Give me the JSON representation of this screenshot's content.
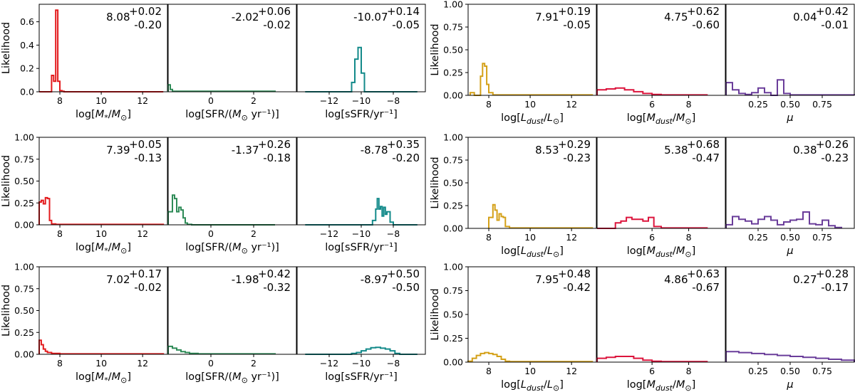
{
  "colors": {
    "mstar": "#e31a1c",
    "sfr": "#2e8b57",
    "ssfr": "#138a8a",
    "ldust": "#d4a017",
    "mdust": "#dc143c",
    "mu": "#6a3d9a"
  },
  "chart_data": [
    {
      "group": "left",
      "row": 0,
      "col": 0,
      "type": "histogram",
      "ylabel": "Likelihood",
      "xlabel": "log[M*/M⊙]",
      "xlim": [
        7,
        13.2
      ],
      "ylim": [
        0,
        0.75
      ],
      "xticks": [
        "8",
        "10",
        "12"
      ],
      "xtick_values": [
        8,
        10,
        12
      ],
      "yticks": [
        "0.0",
        "0.2",
        "0.4",
        "0.6"
      ],
      "ytick_values": [
        0,
        0.2,
        0.4,
        0.6
      ],
      "color_key": "mstar",
      "annotation": {
        "value": "8.08",
        "plus": "+0.02",
        "minus": "-0.20"
      },
      "edges": [
        7.0,
        7.6,
        7.7,
        7.8,
        7.9,
        8.0,
        8.1,
        8.2,
        13.0
      ],
      "values": [
        0,
        0.14,
        0.09,
        0.7,
        0.09,
        0.01,
        0.005,
        0
      ]
    },
    {
      "group": "left",
      "row": 0,
      "col": 1,
      "type": "histogram",
      "xlabel": "log[SFR/(M⊙ yr⁻¹)]",
      "xlim": [
        -2,
        4
      ],
      "ylim": [
        0,
        0.75
      ],
      "xticks": [
        "0",
        "2"
      ],
      "xtick_values": [
        0,
        2
      ],
      "yticks": [],
      "ytick_values": [],
      "color_key": "sfr",
      "annotation": {
        "value": "-2.02",
        "plus": "+0.06",
        "minus": "-0.02"
      },
      "edges": [
        -2.0,
        -1.9,
        -1.8,
        3.0
      ],
      "values": [
        0.06,
        0.02,
        0.005
      ]
    },
    {
      "group": "left",
      "row": 0,
      "col": 2,
      "type": "histogram",
      "xlabel": "log[sSFR/yr⁻¹]",
      "xlim": [
        -14,
        -6
      ],
      "ylim": [
        0,
        0.75
      ],
      "xticks": [
        "−12",
        "−10",
        "−8"
      ],
      "xtick_values": [
        -12,
        -10,
        -8
      ],
      "yticks": [],
      "ytick_values": [],
      "color_key": "ssfr",
      "annotation": {
        "value": "-10.07",
        "plus": "+0.14",
        "minus": "-0.05"
      },
      "edges": [
        -13.5,
        -10.6,
        -10.4,
        -10.2,
        -10.0,
        -9.8,
        -6.5
      ],
      "values": [
        0,
        0.08,
        0.28,
        0.38,
        0.16,
        0
      ]
    },
    {
      "group": "left",
      "row": 1,
      "col": 0,
      "type": "histogram",
      "ylabel": "Likelihood",
      "xlabel": "log[M*/M⊙]",
      "xlim": [
        7,
        13.2
      ],
      "ylim": [
        0,
        1.0
      ],
      "xticks": [
        "8",
        "10",
        "12"
      ],
      "xtick_values": [
        8,
        10,
        12
      ],
      "yticks": [
        "0.00",
        "0.25",
        "0.50",
        "0.75",
        "1.00"
      ],
      "ytick_values": [
        0,
        0.25,
        0.5,
        0.75,
        1.0
      ],
      "color_key": "mstar",
      "annotation": {
        "value": "7.39",
        "plus": "+0.05",
        "minus": "-0.13"
      },
      "edges": [
        7.0,
        7.1,
        7.2,
        7.3,
        7.4,
        7.5,
        7.6,
        7.8,
        13.0
      ],
      "values": [
        0.26,
        0.28,
        0.24,
        0.31,
        0.3,
        0.05,
        0.01,
        0.005
      ]
    },
    {
      "group": "left",
      "row": 1,
      "col": 1,
      "type": "histogram",
      "xlabel": "log[SFR/(M⊙ yr⁻¹)]",
      "xlim": [
        -2,
        4
      ],
      "ylim": [
        0,
        1.0
      ],
      "xticks": [
        "0",
        "2"
      ],
      "xtick_values": [
        0,
        2
      ],
      "yticks": [],
      "ytick_values": [],
      "color_key": "sfr",
      "annotation": {
        "value": "-1.37",
        "plus": "+0.26",
        "minus": "-0.18"
      },
      "edges": [
        -2.0,
        -1.8,
        -1.7,
        -1.6,
        -1.5,
        -1.4,
        -1.3,
        -1.2,
        -1.1,
        -0.9,
        3.0
      ],
      "values": [
        0.15,
        0.34,
        0.3,
        0.15,
        0.2,
        0.17,
        0.08,
        0.02,
        0.005,
        0
      ]
    },
    {
      "group": "left",
      "row": 1,
      "col": 2,
      "type": "histogram",
      "xlabel": "log[sSFR/yr⁻¹]",
      "xlim": [
        -14,
        -6
      ],
      "ylim": [
        0,
        1.0
      ],
      "xticks": [
        "−12",
        "−10",
        "−8"
      ],
      "xtick_values": [
        -12,
        -10,
        -8
      ],
      "yticks": [],
      "ytick_values": [],
      "color_key": "ssfr",
      "annotation": {
        "value": "-8.78",
        "plus": "+0.35",
        "minus": "-0.20"
      },
      "edges": [
        -13.5,
        -9.3,
        -9.1,
        -9.0,
        -8.9,
        -8.8,
        -8.7,
        -8.6,
        -8.5,
        -8.4,
        -8.2,
        -8.0,
        -6.5
      ],
      "values": [
        0,
        0.05,
        0.18,
        0.3,
        0.18,
        0.21,
        0.1,
        0.2,
        0.12,
        0.15,
        0.03,
        0
      ]
    },
    {
      "group": "left",
      "row": 2,
      "col": 0,
      "type": "histogram",
      "ylabel": "Likelihood",
      "xlabel": "log[M*/M⊙]",
      "xlim": [
        7,
        13.2
      ],
      "ylim": [
        0,
        1.0
      ],
      "xticks": [
        "8",
        "10",
        "12"
      ],
      "xtick_values": [
        8,
        10,
        12
      ],
      "yticks": [
        "0.00",
        "0.25",
        "0.50",
        "0.75",
        "1.00"
      ],
      "ytick_values": [
        0,
        0.25,
        0.5,
        0.75,
        1.0
      ],
      "color_key": "mstar",
      "annotation": {
        "value": "7.02",
        "plus": "+0.17",
        "minus": "-0.02"
      },
      "edges": [
        7.0,
        7.1,
        7.2,
        7.3,
        7.4,
        7.6,
        8.0,
        13.0
      ],
      "values": [
        0.16,
        0.11,
        0.06,
        0.035,
        0.02,
        0.01,
        0.005
      ]
    },
    {
      "group": "left",
      "row": 2,
      "col": 1,
      "type": "histogram",
      "xlabel": "log[SFR/(M⊙ yr⁻¹)]",
      "xlim": [
        -2,
        4
      ],
      "ylim": [
        0,
        1.0
      ],
      "xticks": [
        "0",
        "2"
      ],
      "xtick_values": [
        0,
        2
      ],
      "yticks": [],
      "ytick_values": [],
      "color_key": "sfr",
      "annotation": {
        "value": "-1.98",
        "plus": "+0.42",
        "minus": "-0.32"
      },
      "edges": [
        -2.0,
        -1.8,
        -1.6,
        -1.4,
        -1.2,
        -1.0,
        -0.6,
        3.0
      ],
      "values": [
        0.09,
        0.07,
        0.05,
        0.03,
        0.02,
        0.01,
        0.005
      ]
    },
    {
      "group": "left",
      "row": 2,
      "col": 2,
      "type": "histogram",
      "xlabel": "log[sSFR/yr⁻¹]",
      "xlim": [
        -14,
        -6
      ],
      "ylim": [
        0,
        1.0
      ],
      "xticks": [
        "−12",
        "−10",
        "−8"
      ],
      "xtick_values": [
        -12,
        -10,
        -8
      ],
      "yticks": [],
      "ytick_values": [],
      "color_key": "ssfr",
      "annotation": {
        "value": "-8.97",
        "plus": "+0.50",
        "minus": "-0.50"
      },
      "edges": [
        -13.5,
        -10.6,
        -10.3,
        -10.0,
        -9.7,
        -9.4,
        -9.1,
        -8.8,
        -8.5,
        -8.2,
        -7.9,
        -7.6,
        -6.5
      ],
      "values": [
        0,
        0.01,
        0.02,
        0.04,
        0.06,
        0.075,
        0.08,
        0.07,
        0.06,
        0.04,
        0.01,
        0
      ]
    },
    {
      "group": "right",
      "row": 0,
      "col": 0,
      "type": "histogram",
      "ylabel": "Likelihood",
      "xlabel": "log[L_dust/L⊙]",
      "xlim": [
        7,
        13.2
      ],
      "ylim": [
        0,
        1.0
      ],
      "xticks": [
        "8",
        "10",
        "12"
      ],
      "xtick_values": [
        8,
        10,
        12
      ],
      "yticks": [
        "0.00",
        "0.25",
        "0.50",
        "0.75",
        "1.00"
      ],
      "ytick_values": [
        0,
        0.25,
        0.5,
        0.75,
        1.0
      ],
      "color_key": "ldust",
      "annotation": {
        "value": "7.91",
        "plus": "+0.19",
        "minus": "-0.05"
      },
      "edges": [
        7.1,
        7.3,
        7.6,
        7.7,
        7.8,
        7.9,
        8.0,
        8.2,
        13.0
      ],
      "values": [
        0.03,
        0,
        0.21,
        0.35,
        0.32,
        0.12,
        0.03,
        0.005
      ]
    },
    {
      "group": "right",
      "row": 0,
      "col": 1,
      "type": "histogram",
      "xlabel": "log[M_dust/M⊙]",
      "xlim": [
        3,
        10
      ],
      "ylim": [
        0,
        1.0
      ],
      "xticks": [
        "6",
        "8"
      ],
      "xtick_values": [
        6,
        8
      ],
      "yticks": [],
      "ytick_values": [],
      "color_key": "mdust",
      "annotation": {
        "value": "4.75",
        "plus": "+0.62",
        "minus": "-0.60"
      },
      "edges": [
        3.0,
        3.5,
        4.0,
        4.5,
        5.0,
        5.5,
        6.0,
        6.5,
        9.0
      ],
      "values": [
        0.06,
        0.07,
        0.08,
        0.06,
        0.04,
        0.02,
        0.01,
        0.005
      ]
    },
    {
      "group": "right",
      "row": 0,
      "col": 2,
      "type": "histogram",
      "xlabel": "μ",
      "xlim": [
        0,
        1
      ],
      "ylim": [
        0,
        1.0
      ],
      "xticks": [
        "0.25",
        "0.50",
        "0.75"
      ],
      "xtick_values": [
        0.25,
        0.5,
        0.75
      ],
      "yticks": [],
      "ytick_values": [],
      "color_key": "mu",
      "annotation": {
        "value": "0.04",
        "plus": "+0.42",
        "minus": "-0.01"
      },
      "edges": [
        0.0,
        0.05,
        0.1,
        0.15,
        0.2,
        0.25,
        0.3,
        0.35,
        0.4,
        0.45,
        0.5,
        0.55,
        1.0
      ],
      "values": [
        0.14,
        0.06,
        0.02,
        0.01,
        0.03,
        0.08,
        0.03,
        0.0,
        0.17,
        0.02,
        0.005,
        0.005
      ]
    },
    {
      "group": "right",
      "row": 1,
      "col": 0,
      "type": "histogram",
      "ylabel": "Likelihood",
      "xlabel": "log[L_dust/L⊙]",
      "xlim": [
        7,
        13.2
      ],
      "ylim": [
        0,
        1.0
      ],
      "xticks": [
        "8",
        "10",
        "12"
      ],
      "xtick_values": [
        8,
        10,
        12
      ],
      "yticks": [
        "0.00",
        "0.25",
        "0.50",
        "0.75",
        "1.00"
      ],
      "ytick_values": [
        0,
        0.25,
        0.5,
        0.75,
        1.0
      ],
      "color_key": "ldust",
      "annotation": {
        "value": "8.53",
        "plus": "+0.29",
        "minus": "-0.23"
      },
      "edges": [
        8.0,
        8.2,
        8.3,
        8.4,
        8.5,
        8.6,
        8.7,
        8.8,
        9.0,
        13.0
      ],
      "values": [
        0.12,
        0.26,
        0.2,
        0.09,
        0.16,
        0.13,
        0.12,
        0.02,
        0.005
      ]
    },
    {
      "group": "right",
      "row": 1,
      "col": 1,
      "type": "histogram",
      "xlabel": "log[M_dust/M⊙]",
      "xlim": [
        3,
        10
      ],
      "ylim": [
        0,
        1.0
      ],
      "xticks": [
        "6",
        "8"
      ],
      "xtick_values": [
        6,
        8
      ],
      "yticks": [],
      "ytick_values": [],
      "color_key": "mdust",
      "annotation": {
        "value": "5.38",
        "plus": "+0.68",
        "minus": "-0.47"
      },
      "edges": [
        3.0,
        4.0,
        4.3,
        4.6,
        4.9,
        5.2,
        5.5,
        5.8,
        6.1,
        6.5,
        9.0
      ],
      "values": [
        0,
        0.06,
        0.08,
        0.12,
        0.1,
        0.1,
        0.08,
        0.12,
        0.02,
        0.005
      ]
    },
    {
      "group": "right",
      "row": 1,
      "col": 2,
      "type": "histogram",
      "xlabel": "μ",
      "xlim": [
        0,
        1
      ],
      "ylim": [
        0,
        1.0
      ],
      "xticks": [
        "0.25",
        "0.50",
        "0.75"
      ],
      "xtick_values": [
        0.25,
        0.5,
        0.75
      ],
      "yticks": [],
      "ytick_values": [],
      "color_key": "mu",
      "annotation": {
        "value": "0.38",
        "plus": "+0.26",
        "minus": "-0.23"
      },
      "edges": [
        0.0,
        0.05,
        0.1,
        0.15,
        0.2,
        0.25,
        0.3,
        0.35,
        0.4,
        0.45,
        0.5,
        0.55,
        0.6,
        0.65,
        0.7,
        0.75,
        0.8,
        0.85,
        0.9
      ],
      "values": [
        0.04,
        0.13,
        0.1,
        0.08,
        0.05,
        0.1,
        0.13,
        0.09,
        0.04,
        0.07,
        0.09,
        0.1,
        0.18,
        0.05,
        0.04,
        0.09,
        0.03,
        0.01
      ]
    },
    {
      "group": "right",
      "row": 2,
      "col": 0,
      "type": "histogram",
      "ylabel": "Likelihood",
      "xlabel": "log[L_dust/L⊙]",
      "xlim": [
        7,
        13.2
      ],
      "ylim": [
        0,
        1.0
      ],
      "xticks": [
        "8",
        "10",
        "12"
      ],
      "xtick_values": [
        8,
        10,
        12
      ],
      "yticks": [
        "0.00",
        "0.25",
        "0.50",
        "0.75",
        "1.00"
      ],
      "ytick_values": [
        0,
        0.25,
        0.5,
        0.75,
        1.0
      ],
      "color_key": "ldust",
      "annotation": {
        "value": "7.95",
        "plus": "+0.48",
        "minus": "-0.42"
      },
      "edges": [
        7.0,
        7.2,
        7.4,
        7.6,
        7.8,
        8.0,
        8.2,
        8.4,
        8.6,
        8.8,
        9.0,
        13.0
      ],
      "values": [
        0.01,
        0.04,
        0.07,
        0.09,
        0.1,
        0.09,
        0.08,
        0.06,
        0.03,
        0.01,
        0.005
      ]
    },
    {
      "group": "right",
      "row": 2,
      "col": 1,
      "type": "histogram",
      "xlabel": "log[M_dust/M⊙]",
      "xlim": [
        3,
        10
      ],
      "ylim": [
        0,
        1.0
      ],
      "xticks": [
        "6",
        "8"
      ],
      "xtick_values": [
        6,
        8
      ],
      "yticks": [],
      "ytick_values": [],
      "color_key": "mdust",
      "annotation": {
        "value": "4.86",
        "plus": "+0.63",
        "minus": "-0.67"
      },
      "edges": [
        3.0,
        3.5,
        4.0,
        4.5,
        5.0,
        5.5,
        6.0,
        6.5,
        9.0
      ],
      "values": [
        0.04,
        0.05,
        0.06,
        0.06,
        0.04,
        0.02,
        0.01,
        0.005
      ]
    },
    {
      "group": "right",
      "row": 2,
      "col": 2,
      "type": "histogram",
      "xlabel": "μ",
      "xlim": [
        0,
        1
      ],
      "ylim": [
        0,
        1.0
      ],
      "xticks": [
        "0.25",
        "0.50",
        "0.75"
      ],
      "xtick_values": [
        0.25,
        0.5,
        0.75
      ],
      "yticks": [],
      "ytick_values": [],
      "color_key": "mu",
      "annotation": {
        "value": "0.27",
        "plus": "+0.28",
        "minus": "-0.17"
      },
      "edges": [
        0.0,
        0.1,
        0.2,
        0.3,
        0.4,
        0.5,
        0.6,
        0.7,
        0.8,
        0.9,
        1.0
      ],
      "values": [
        0.11,
        0.1,
        0.09,
        0.08,
        0.07,
        0.06,
        0.05,
        0.04,
        0.03,
        0.02
      ]
    }
  ]
}
